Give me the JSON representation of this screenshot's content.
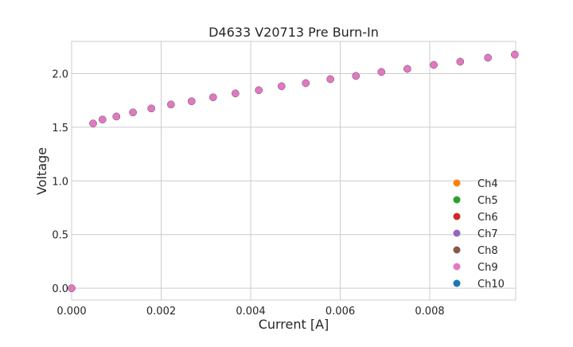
{
  "chart_data": {
    "type": "scatter",
    "title": "D4633 V20713 Pre Burn-In",
    "xlabel": "Current [A]",
    "ylabel": "Voltage",
    "xlim": [
      0,
      0.00992
    ],
    "ylim": [
      -0.11,
      2.3
    ],
    "grid": true,
    "legend_position": "lower-right",
    "xticks": [
      "0.000",
      "0.002",
      "0.004",
      "0.006",
      "0.008"
    ],
    "xtick_values": [
      0,
      0.002,
      0.004,
      0.006,
      0.008
    ],
    "yticks": [
      "0.0",
      "0.5",
      "1.0",
      "1.5",
      "2.0"
    ],
    "ytick_values": [
      0,
      0.5,
      1.0,
      1.5,
      2.0
    ],
    "x": [
      0,
      0.00048,
      0.00069,
      0.001,
      0.00137,
      0.00178,
      0.00222,
      0.00268,
      0.00316,
      0.00366,
      0.00418,
      0.00469,
      0.00523,
      0.00578,
      0.00635,
      0.00692,
      0.0075,
      0.00809,
      0.00868,
      0.0093,
      0.0099
    ],
    "y": [
      0,
      1.535,
      1.572,
      1.6,
      1.638,
      1.675,
      1.712,
      1.742,
      1.779,
      1.815,
      1.845,
      1.882,
      1.911,
      1.948,
      1.978,
      2.015,
      2.044,
      2.081,
      2.111,
      2.148,
      2.177
    ],
    "series": [
      {
        "name": "Ch4",
        "color": "#ff7f0e"
      },
      {
        "name": "Ch5",
        "color": "#2ca02c"
      },
      {
        "name": "Ch6",
        "color": "#d62728"
      },
      {
        "name": "Ch7",
        "color": "#9467bd"
      },
      {
        "name": "Ch8",
        "color": "#8c564b"
      },
      {
        "name": "Ch9",
        "color": "#e377c2"
      },
      {
        "name": "Ch10",
        "color": "#1f77b4"
      }
    ]
  }
}
